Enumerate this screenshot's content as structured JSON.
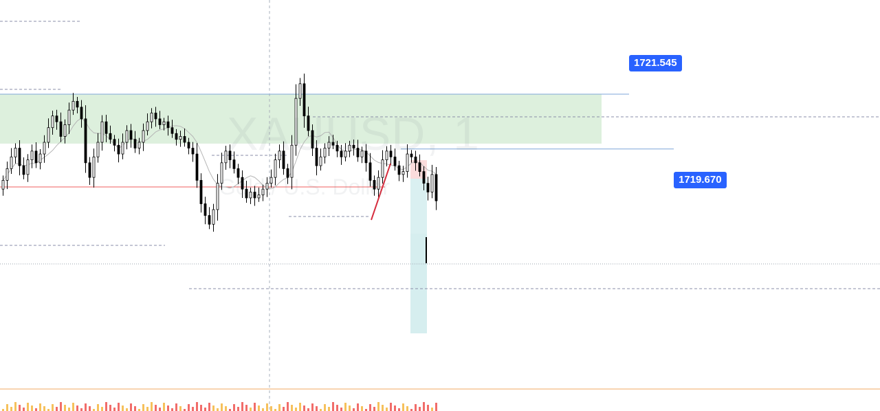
{
  "watermark": {
    "symbol": "XAUUSD, 1",
    "description": "Gold / U.S. Dollar"
  },
  "price_labels": {
    "zone_top": "1721.545",
    "current": "1719.670"
  },
  "colors": {
    "up_candle": "#000000",
    "down_candle": "#000000",
    "zone_fill": "#ddf0dd",
    "tag_bg": "#2962ff",
    "moving_average": "#b5b5b5",
    "red_level": "#f05d5d",
    "trend_line": "#d62d3e",
    "target_zone": "#d6eeef",
    "stop_zone": "#fbdcdc",
    "volume_up": "#f4b63f",
    "volume_down": "#ef5350",
    "separator": "#f0a860"
  },
  "chart_data": {
    "type": "candlestick",
    "symbol": "XAUUSD",
    "timeframe": "1",
    "ylim": [
      1714.9,
      1722.6
    ],
    "levels": [
      1721.545,
      1719.67
    ],
    "closes": [
      1718.6,
      1719.0,
      1719.4,
      1719.7,
      1719.1,
      1718.8,
      1719.3,
      1719.6,
      1719.2,
      1719.5,
      1719.9,
      1720.4,
      1720.8,
      1720.6,
      1720.1,
      1720.5,
      1721.0,
      1721.3,
      1721.1,
      1720.7,
      1719.2,
      1718.7,
      1719.4,
      1719.9,
      1720.6,
      1720.2,
      1720.0,
      1719.8,
      1719.5,
      1719.9,
      1720.3,
      1720.0,
      1719.7,
      1719.9,
      1720.3,
      1720.6,
      1720.9,
      1720.7,
      1720.5,
      1720.6,
      1720.4,
      1720.2,
      1720.0,
      1720.1,
      1719.9,
      1719.7,
      1719.5,
      1718.6,
      1717.8,
      1717.4,
      1717.1,
      1717.6,
      1718.5,
      1719.2,
      1719.6,
      1719.3,
      1719.0,
      1718.7,
      1718.3,
      1718.0,
      1718.2,
      1718.0,
      1718.1,
      1718.3,
      1718.5,
      1718.7,
      1719.3,
      1719.6,
      1719.0,
      1718.7,
      1719.8,
      1721.4,
      1721.9,
      1720.8,
      1720.3,
      1719.7,
      1719.1,
      1719.4,
      1719.7,
      1719.9,
      1719.8,
      1719.6,
      1719.4,
      1719.6,
      1719.8,
      1719.7,
      1719.4,
      1719.6,
      1719.2,
      1718.6,
      1718.3,
      1718.7,
      1719.3,
      1719.6,
      1719.4,
      1719.1,
      1718.8,
      1718.9,
      1719.5,
      1719.4,
      1719.2,
      1718.9,
      1718.5,
      1718.2,
      1718.8,
      1717.9
    ]
  }
}
